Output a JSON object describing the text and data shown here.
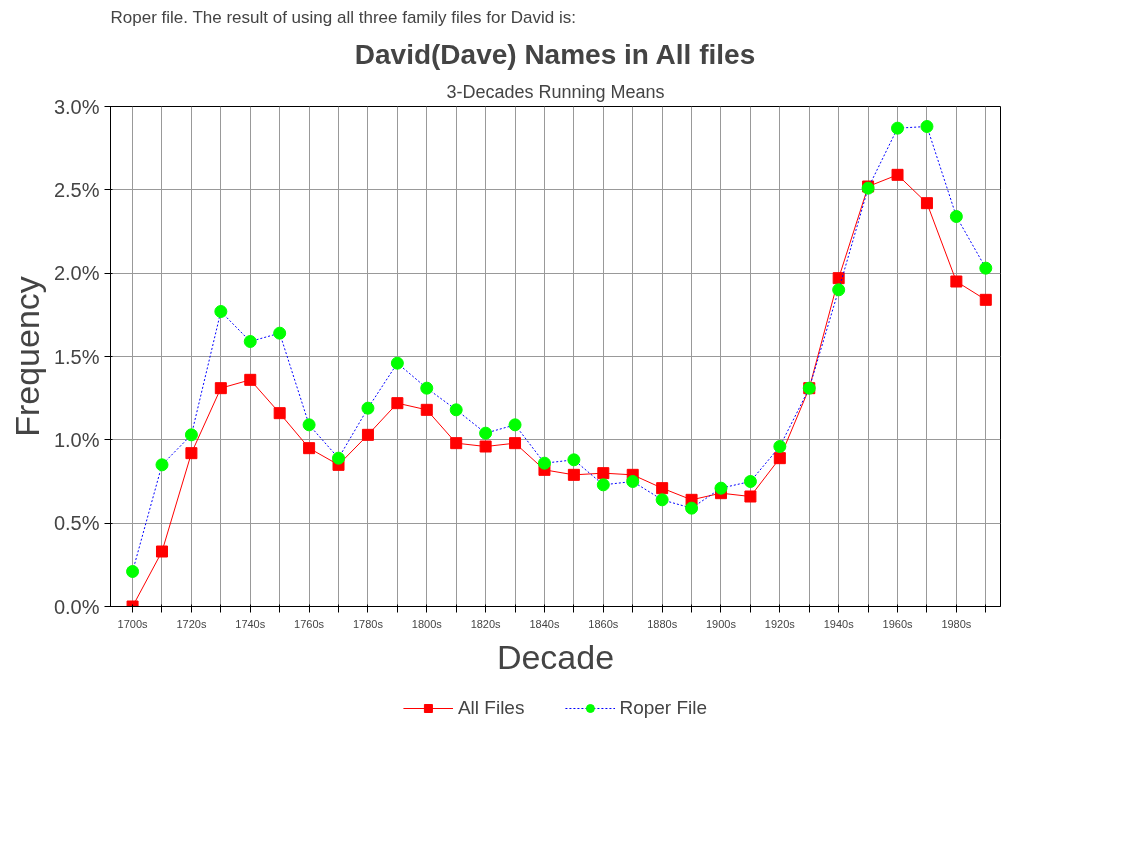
{
  "chart_data": {
    "type": "line",
    "title": "David(Dave) Names in All files",
    "subtitle": "3-Decades Running Means",
    "xlabel": "Decade",
    "ylabel": "Frequency",
    "annotations": [
      "Roper file.  The result of using all three family files for David is:"
    ],
    "categories": [
      "1700s",
      null,
      "1720s",
      null,
      "1740s",
      null,
      "1760s",
      null,
      "1780s",
      null,
      "1800s",
      null,
      "1820s",
      null,
      "1840s",
      null,
      "1860s",
      null,
      "1880s",
      null,
      "1900s",
      null,
      "1920s",
      null,
      "1940s",
      null,
      "1960s",
      null,
      "1980s",
      null
    ],
    "series": [
      {
        "name": "All Files",
        "color": "#ff0000",
        "marker": "square",
        "line_style": "solid",
        "values": [
          0.0,
          0.33,
          0.92,
          1.31,
          1.36,
          1.16,
          0.95,
          0.85,
          1.03,
          1.22,
          1.18,
          0.98,
          0.96,
          0.98,
          0.82,
          0.79,
          0.8,
          0.79,
          0.71,
          0.64,
          0.68,
          0.66,
          0.89,
          1.31,
          1.97,
          2.52,
          2.59,
          2.42,
          1.95,
          1.84
        ]
      },
      {
        "name": "Roper File",
        "color": "#00ff00",
        "marker": "circle",
        "line_style": "dotted",
        "values": [
          0.21,
          0.85,
          1.03,
          1.77,
          1.59,
          1.64,
          1.09,
          0.89,
          1.19,
          1.46,
          1.31,
          1.18,
          1.04,
          1.09,
          0.86,
          0.88,
          0.73,
          0.75,
          0.64,
          0.59,
          0.71,
          0.75,
          0.96,
          1.31,
          1.9,
          2.51,
          2.87,
          2.88,
          2.34,
          2.03
        ]
      }
    ],
    "ylim": [
      0,
      3
    ],
    "yticks": [
      {
        "value": 0,
        "label": "0.0%"
      },
      {
        "value": 0.5,
        "label": "0.5%"
      },
      {
        "value": 1,
        "label": "1.0%"
      },
      {
        "value": 1.5,
        "label": "1.5%"
      },
      {
        "value": 2,
        "label": "2.0%"
      },
      {
        "value": 2.5,
        "label": "2.5%"
      },
      {
        "value": 3,
        "label": "3.0%"
      }
    ],
    "grid": true,
    "legend": "bottom"
  }
}
